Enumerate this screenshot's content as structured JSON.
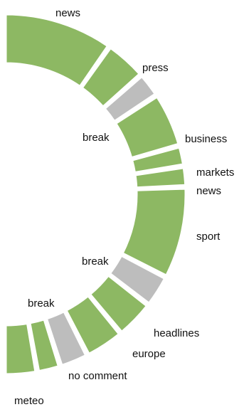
{
  "chart_data": {
    "type": "pie",
    "layout": "half-donut (right semicircle)",
    "colors": {
      "program": "#8db863",
      "break": "#bdbdbd",
      "separator": "#ffffff",
      "background": "#ffffff"
    },
    "segments": [
      {
        "label": "news",
        "duration": 19.5,
        "kind": "program"
      },
      {
        "label": "press",
        "duration": 7.5,
        "kind": "program"
      },
      {
        "label": "",
        "duration": 4.5,
        "kind": "break"
      },
      {
        "label": "business",
        "duration": 9.8,
        "kind": "program"
      },
      {
        "label": "markets",
        "duration": 3.7,
        "kind": "program"
      },
      {
        "label": "news",
        "duration": 3.7,
        "kind": "program"
      },
      {
        "label": "sport",
        "duration": 16.5,
        "kind": "program"
      },
      {
        "label": "",
        "duration": 5.8,
        "kind": "break"
      },
      {
        "label": "headlines",
        "duration": 7.0,
        "kind": "program"
      },
      {
        "label": "europe",
        "duration": 7.0,
        "kind": "program"
      },
      {
        "label": "",
        "duration": 5.2,
        "kind": "break"
      },
      {
        "label": "no comment",
        "duration": 4.2,
        "kind": "program"
      },
      {
        "label": "meteo",
        "duration": 5.6,
        "kind": "program"
      }
    ],
    "break_label": "break"
  }
}
